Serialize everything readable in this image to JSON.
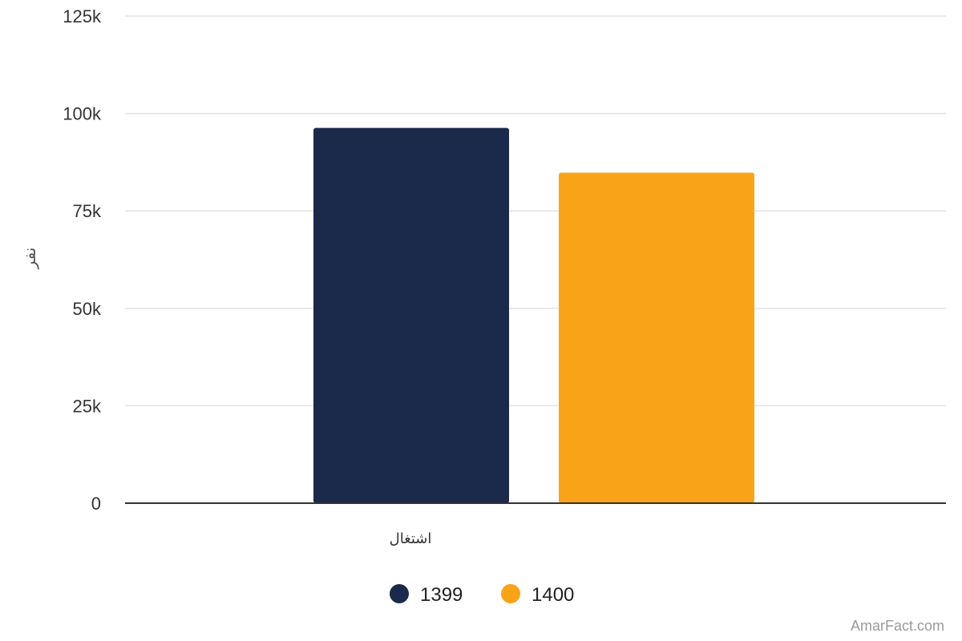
{
  "chart_data": {
    "type": "bar",
    "categories": [
      "اشتغال"
    ],
    "series": [
      {
        "name": "1399",
        "values": [
          96300
        ],
        "color": "#1b2a4a"
      },
      {
        "name": "1400",
        "values": [
          84800
        ],
        "color": "#f9a319"
      }
    ],
    "title": "",
    "xlabel": "",
    "ylabel": "نفر",
    "ylim": [
      0,
      125000
    ],
    "yticks": [
      0,
      25000,
      50000,
      75000,
      100000,
      125000
    ],
    "ytick_labels": [
      "0",
      "25k",
      "50k",
      "75k",
      "100k",
      "125k"
    ],
    "grid": true,
    "legend_position": "bottom-center"
  },
  "watermark": "AmarFact.com"
}
